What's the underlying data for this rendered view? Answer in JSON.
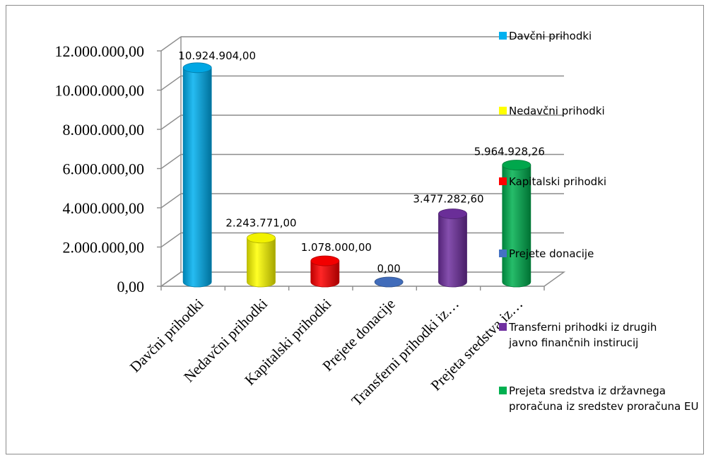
{
  "chart_data": {
    "type": "bar",
    "title": "",
    "xlabel": "",
    "ylabel": "",
    "ylim": [
      0,
      12000000
    ],
    "y_ticks": [
      "0,00",
      "2.000.000,00",
      "4.000.000,00",
      "6.000.000,00",
      "8.000.000,00",
      "10.000.000,00",
      "12.000.000,00"
    ],
    "categories": [
      "Davčni prihodki",
      "Nedavčni prihodki",
      "Kapitalski prihodki",
      "Prejete donacije",
      "Transferni prihodki iz…",
      "Prejeta sredstva iz…"
    ],
    "values": [
      10924904.0,
      2243771.0,
      1078000.0,
      0.0,
      3477282.6,
      5964928.26
    ],
    "data_labels": [
      "10.924.904,00",
      "2.243.771,00",
      "1.078.000,00",
      "0,00",
      "3.477.282,60",
      "5.964.928,26"
    ],
    "colors": [
      "#00B0F0",
      "#FFFF00",
      "#FF0000",
      "#4472C4",
      "#7030A0",
      "#00B050"
    ],
    "grid": true,
    "legend_position": "right",
    "legend": [
      "Davčni prihodki",
      "Nedavčni prihodki",
      "Kapitalski prihodki",
      "Prejete donacije",
      "Transferni prihodki iz drugih javno finančnih instirucij",
      "Prejeta sredstva iz državnega proračuna iz sredstev proračuna EU"
    ]
  }
}
